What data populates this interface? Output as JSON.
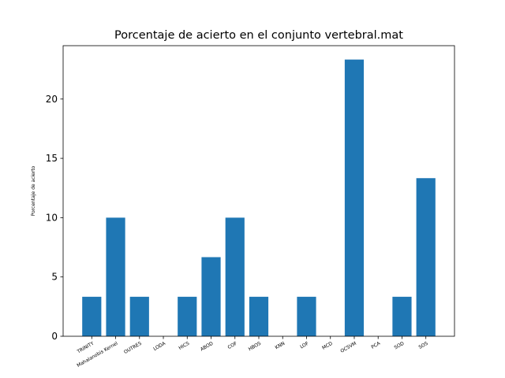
{
  "chart_data": {
    "type": "bar",
    "title": "Porcentaje de acierto en el conjunto vertebral.mat",
    "xlabel": "",
    "ylabel": "Porcentaje de acierto",
    "categories": [
      "TRINITY",
      "Mahalanobis Kernel",
      "OUTRES",
      "LODA",
      "HICS",
      "ABOD",
      "COF",
      "HBOS",
      "KNN",
      "LOF",
      "MCD",
      "OCSVM",
      "PCA",
      "SOD",
      "SOS"
    ],
    "values": [
      3.33,
      10.0,
      3.33,
      0,
      3.33,
      6.67,
      10.0,
      3.33,
      0,
      3.33,
      0,
      23.33,
      0,
      3.33,
      13.33
    ],
    "ylim": [
      0,
      24.5
    ],
    "yticks": [
      0,
      5,
      10,
      15,
      20
    ],
    "bar_color": "#1f77b4",
    "grid": false,
    "legend": "none"
  }
}
